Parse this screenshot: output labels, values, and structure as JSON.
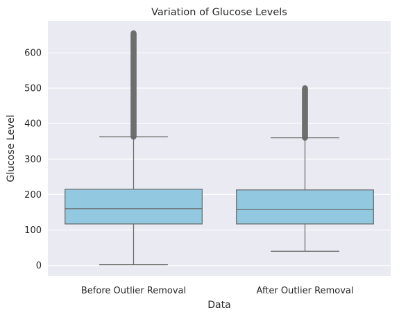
{
  "chart_data": {
    "type": "box",
    "title": "Variation of Glucose Levels",
    "xlabel": "Data",
    "ylabel": "Glucose Level",
    "categories": [
      "Before Outlier Removal",
      "After Outlier Removal"
    ],
    "ylim": [
      -30,
      690
    ],
    "yticks": [
      0,
      100,
      200,
      300,
      400,
      500,
      600
    ],
    "grid": true,
    "legend": "none",
    "colors": {
      "background": "#EAEAF2",
      "grid": "#FFFFFF",
      "box_fill": "#92C9E0",
      "box_edge": "#666666",
      "outlier": "#6E6E6E"
    },
    "boxes": [
      {
        "category": "Before Outlier Removal",
        "whisker_low": 2,
        "q1": 117,
        "median": 160,
        "q3": 215,
        "whisker_high": 363,
        "outlier_range": [
          363,
          655
        ]
      },
      {
        "category": "After Outlier Removal",
        "whisker_low": 40,
        "q1": 117,
        "median": 158,
        "q3": 213,
        "whisker_high": 360,
        "outlier_range": [
          360,
          500
        ]
      }
    ]
  }
}
